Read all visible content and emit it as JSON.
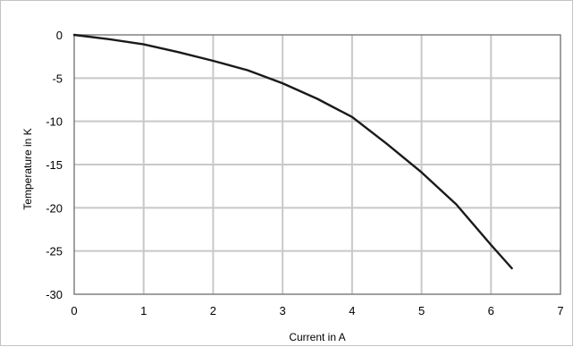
{
  "chart_data": {
    "type": "line",
    "title": "",
    "xlabel": "Current in A",
    "ylabel": "Temperature in K",
    "xlim": [
      0,
      7
    ],
    "ylim": [
      -30,
      0
    ],
    "xticks": [
      0,
      1,
      2,
      3,
      4,
      5,
      6,
      7
    ],
    "yticks": [
      0,
      -5,
      -10,
      -15,
      -20,
      -25,
      -30
    ],
    "xtick_labels": [
      "0",
      "1",
      "2",
      "3",
      "4",
      "5",
      "6",
      "7"
    ],
    "ytick_labels": [
      "0",
      "-5",
      "-10",
      "-15",
      "-20",
      "-25",
      "-30"
    ],
    "grid": true,
    "legend": "none",
    "colors": {
      "line": "#1a1a1a",
      "grid": "#c8c8c8",
      "axes": "#808080",
      "plot_bg": "#ffffff"
    },
    "series": [
      {
        "x": [
          0,
          0.5,
          1.0,
          1.5,
          2.0,
          2.5,
          3.0,
          3.5,
          4.0,
          4.5,
          5.0,
          5.5,
          6.0,
          6.3
        ],
        "y": [
          0,
          -0.5,
          -1.1,
          -2.0,
          -3.0,
          -4.1,
          -5.6,
          -7.4,
          -9.5,
          -12.6,
          -15.9,
          -19.6,
          -24.3,
          -27.0
        ]
      }
    ]
  }
}
